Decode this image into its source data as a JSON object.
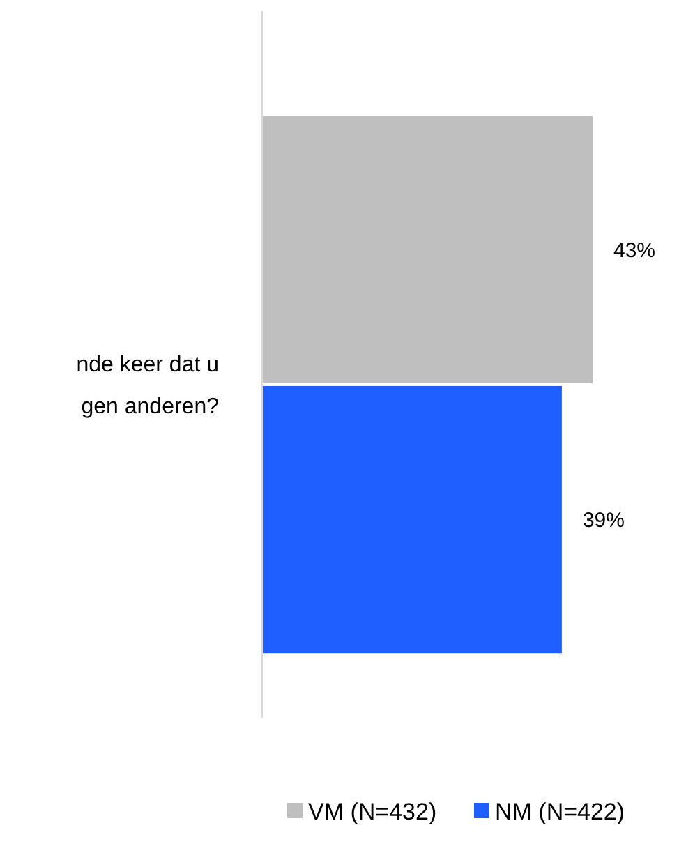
{
  "chart_data": {
    "type": "bar",
    "orientation": "horizontal",
    "categories": [
      null
    ],
    "series": [
      {
        "name": "VM (N=432)",
        "color": "#bfbfbf",
        "values": [
          43
        ],
        "value_labels": [
          "43%"
        ]
      },
      {
        "name": "NM (N=422)",
        "color": "#1f5fff",
        "values": [
          39
        ],
        "value_labels": [
          "39%"
        ]
      }
    ],
    "annotations": [
      "nde keer dat u gen anderen?"
    ],
    "legend": "bottom"
  }
}
